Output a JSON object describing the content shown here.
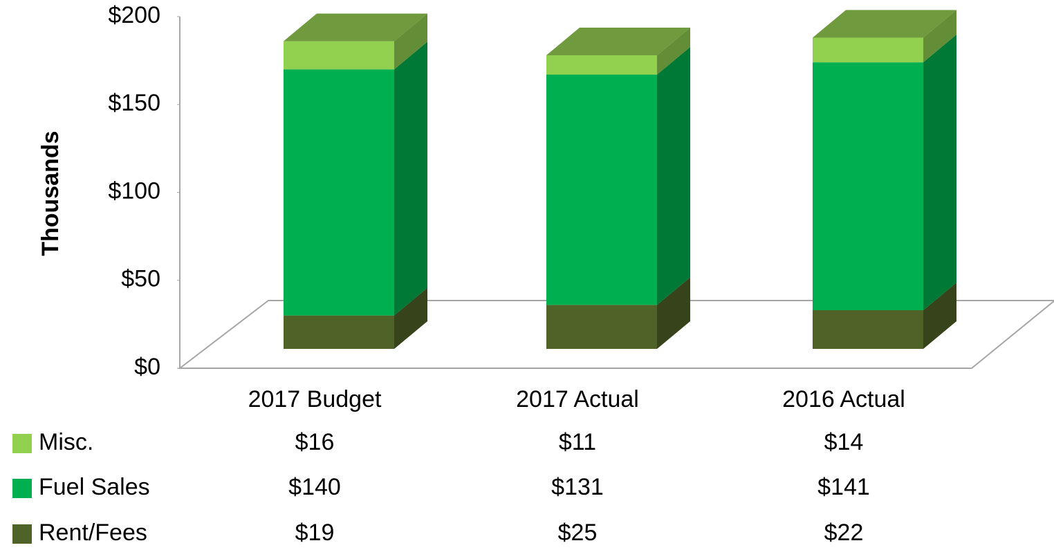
{
  "chart_data": {
    "type": "bar3d_stacked",
    "y_axis_label": "Thousands",
    "categories": [
      "2017 Budget",
      "2017 Actual",
      "2016 Actual"
    ],
    "series": [
      {
        "name": "Rent/Fees",
        "color": "#4f6228",
        "values": [
          19,
          25,
          22
        ],
        "value_labels": [
          "$19",
          "$25",
          "$22"
        ]
      },
      {
        "name": "Fuel Sales",
        "color": "#00b050",
        "values": [
          140,
          131,
          141
        ],
        "value_labels": [
          "$140",
          "$131",
          "$141"
        ]
      },
      {
        "name": "Misc.",
        "color": "#92d050",
        "values": [
          16,
          11,
          14
        ],
        "value_labels": [
          "$16",
          "$11",
          "$14"
        ]
      }
    ],
    "ylim": [
      0,
      200
    ],
    "yticks": [
      {
        "value": 0,
        "label": "$0"
      },
      {
        "value": 50,
        "label": "$50"
      },
      {
        "value": 100,
        "label": "$100"
      },
      {
        "value": 150,
        "label": "$150"
      },
      {
        "value": 200,
        "label": "$200"
      }
    ],
    "grid": false
  }
}
